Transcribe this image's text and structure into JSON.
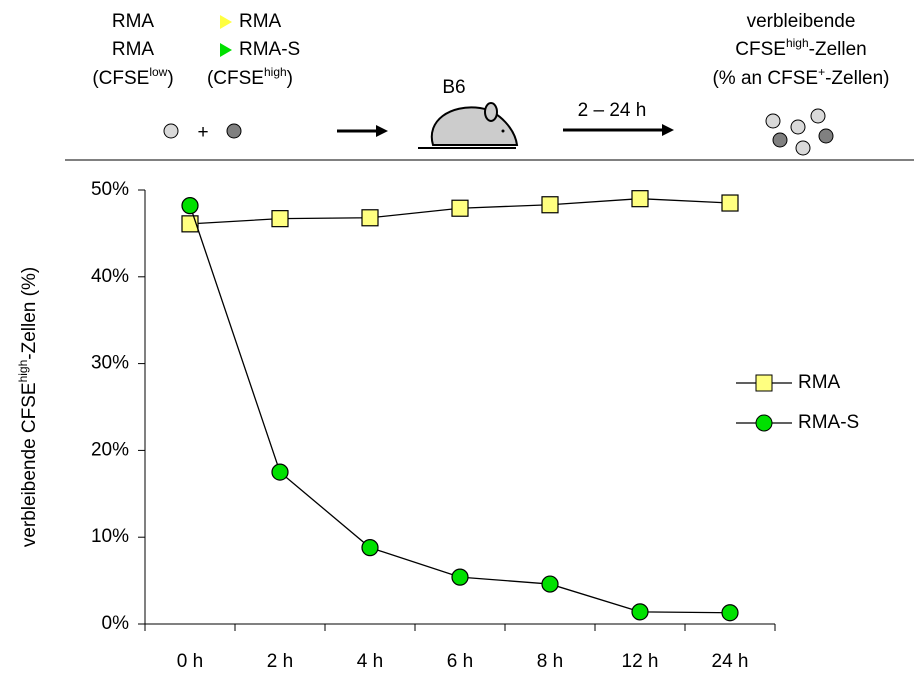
{
  "header": {
    "left": [
      [
        {
          "text": "RMA"
        }
      ],
      [
        {
          "text": "RMA"
        }
      ],
      [
        {
          "text": "(CFSE"
        },
        {
          "text": "low",
          "sup": true
        },
        {
          "text": ")"
        }
      ]
    ],
    "middle": [
      [
        {
          "text": "RMA"
        }
      ],
      [
        {
          "text": "RMA-S"
        }
      ],
      [
        {
          "text": "(CFSE"
        },
        {
          "text": "high",
          "sup": true
        },
        {
          "text": ")"
        }
      ]
    ],
    "plus": "+",
    "host": "B6",
    "time": "2 – 24 h",
    "right": [
      [
        {
          "text": "verbleibende"
        }
      ],
      [
        {
          "text": "CFSE"
        },
        {
          "text": "high",
          "sup": true
        },
        {
          "text": "-Zellen"
        }
      ],
      [
        {
          "text": "(% an CFSE"
        },
        {
          "text": "+",
          "sup": true
        },
        {
          "text": "-Zellen)"
        }
      ]
    ]
  },
  "chart_data": {
    "type": "line",
    "y_label": [
      {
        "text": "verbleibende CFSE"
      },
      {
        "text": "high",
        "sup": true
      },
      {
        "text": "-Zellen (%)"
      }
    ],
    "categories": [
      "0 h",
      "2 h",
      "4 h",
      "6 h",
      "8 h",
      "12 h",
      "24 h"
    ],
    "series": [
      {
        "name": "RMA",
        "color": "#ffff80",
        "marker": "square",
        "values": [
          46.1,
          46.7,
          46.8,
          47.9,
          48.3,
          49.0,
          48.5
        ]
      },
      {
        "name": "RMA-S",
        "color": "#00e000",
        "marker": "circle",
        "values": [
          48.2,
          17.5,
          8.8,
          5.4,
          4.6,
          1.4,
          1.3
        ]
      }
    ],
    "ylim": [
      0,
      50
    ],
    "yticks": [
      {
        "value": 0,
        "label": "0%"
      },
      {
        "value": 10,
        "label": "10%"
      },
      {
        "value": 20,
        "label": "20%"
      },
      {
        "value": 30,
        "label": "30%"
      },
      {
        "value": 40,
        "label": "40%"
      },
      {
        "value": 50,
        "label": "50%"
      }
    ],
    "grid": false,
    "legend": "right"
  }
}
